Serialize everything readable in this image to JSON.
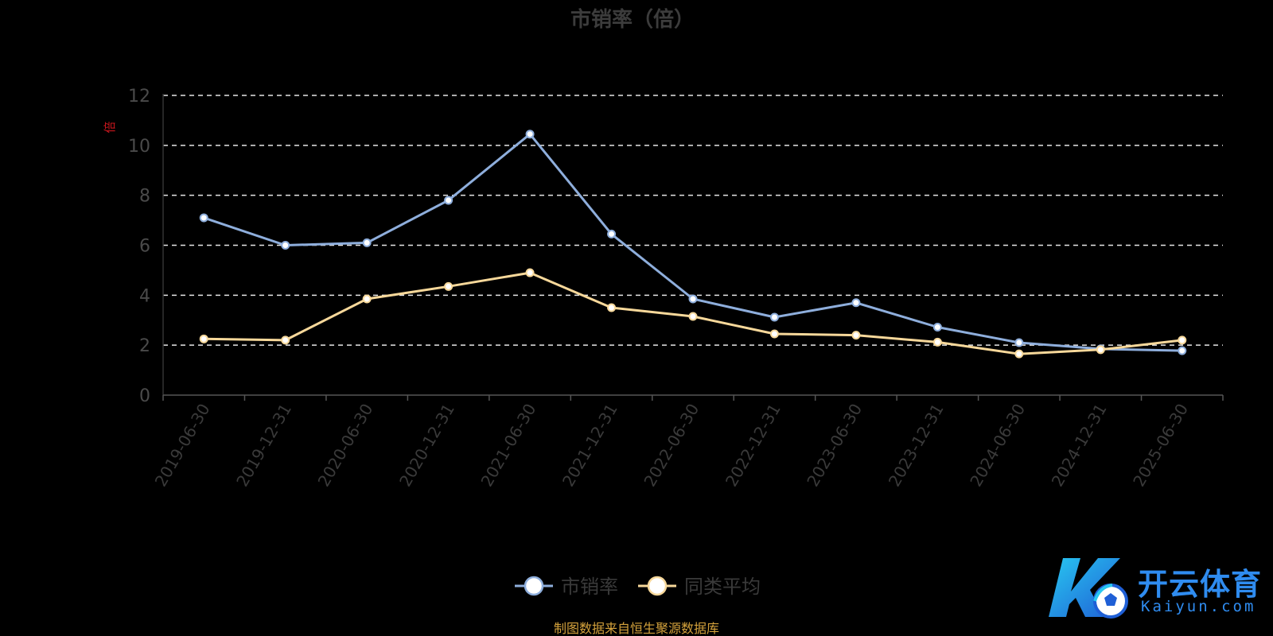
{
  "chart_data": {
    "type": "line",
    "title": "市销率（倍）",
    "ylabel": "倍",
    "xlabel": "",
    "ylim": [
      0,
      12
    ],
    "yticks": [
      "0",
      "2",
      "4",
      "6",
      "8",
      "10",
      "12"
    ],
    "grid": "horizontal-dashed",
    "legend_position": "bottom-center",
    "categories": [
      "2019-06-30",
      "2019-12-31",
      "2020-06-30",
      "2020-12-31",
      "2021-06-30",
      "2021-12-31",
      "2022-06-30",
      "2022-12-31",
      "2023-06-30",
      "2023-12-31",
      "2024-06-30",
      "2024-12-31",
      "2025-06-30"
    ],
    "series": [
      {
        "name": "市销率",
        "color": "#8eaedc",
        "values": [
          7.1,
          6.0,
          6.1,
          7.8,
          10.45,
          6.45,
          3.85,
          3.12,
          3.7,
          2.72,
          2.1,
          1.85,
          1.78
        ]
      },
      {
        "name": "同类平均",
        "color": "#f7d89a",
        "values": [
          2.25,
          2.2,
          3.85,
          4.35,
          4.9,
          3.5,
          3.15,
          2.45,
          2.4,
          2.12,
          1.65,
          1.82,
          2.2
        ]
      }
    ],
    "source_note": "制图数据来自恒生聚源数据库"
  },
  "watermark": {
    "brand_cn": "开云体育",
    "brand_en": "Kaiyun.com",
    "color": "#2f8cf0"
  }
}
